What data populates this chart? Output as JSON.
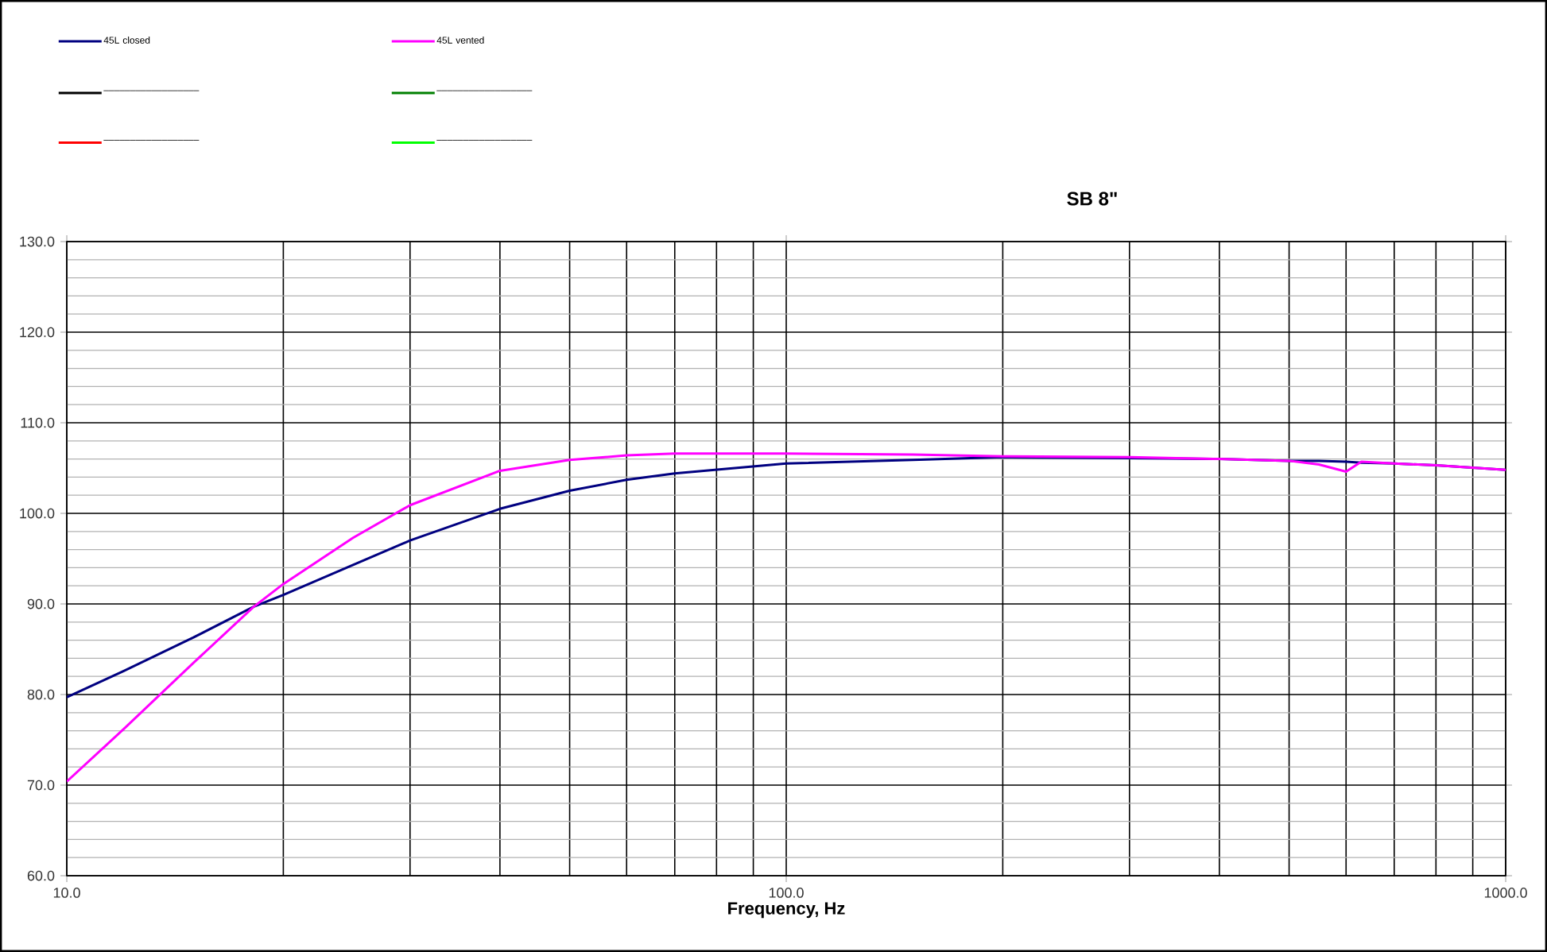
{
  "chart_data": {
    "type": "line",
    "title": "SB 8\"",
    "xlabel": "Frequency,  Hz",
    "log": "x",
    "grid": true,
    "legend": "top left",
    "line_style": "solid",
    "marker": "none",
    "xlim": [
      10,
      1000
    ],
    "ylim": [
      60,
      130
    ],
    "xticks": [
      {
        "value": 10,
        "label": "10.0"
      },
      {
        "value": 100,
        "label": "100.0"
      },
      {
        "value": 1000,
        "label": "1000.0"
      }
    ],
    "yticks": [
      {
        "value": 60,
        "label": "60.0"
      },
      {
        "value": 70,
        "label": "70.0"
      },
      {
        "value": 80,
        "label": "80.0"
      },
      {
        "value": 90,
        "label": "90.0"
      },
      {
        "value": 100,
        "label": "100.0"
      },
      {
        "value": 110,
        "label": "110.0"
      },
      {
        "value": 120,
        "label": "120.0"
      },
      {
        "value": 130,
        "label": "130.0"
      }
    ],
    "x": [
      10,
      12,
      15,
      18.2,
      20,
      25,
      30,
      40,
      50,
      60,
      70,
      100,
      150,
      200,
      300,
      400,
      500,
      550,
      600,
      630,
      700,
      800,
      1000
    ],
    "series": [
      {
        "name": "45L closed",
        "color": "#000080",
        "values": [
          79.7,
          82.6,
          86.3,
          89.7,
          91.0,
          94.3,
          97.0,
          100.5,
          102.5,
          103.7,
          104.4,
          105.5,
          105.9,
          106.2,
          106.1,
          106.0,
          105.8,
          105.8,
          105.7,
          105.6,
          105.5,
          105.3,
          104.8
        ]
      },
      {
        "name": "45L vented",
        "color": "#ff00ff",
        "values": [
          70.4,
          76.2,
          83.5,
          89.7,
          92.2,
          97.3,
          100.9,
          104.7,
          105.9,
          106.4,
          106.6,
          106.6,
          106.5,
          106.3,
          106.2,
          106.0,
          105.8,
          105.4,
          104.6,
          105.7,
          105.5,
          105.3,
          104.8
        ]
      },
      {
        "name": "––––––––––––––––––",
        "color": "#000000",
        "values": [
          null,
          null,
          null,
          null,
          null,
          null,
          null,
          null,
          null,
          null,
          null,
          null,
          null,
          null,
          null,
          null,
          null,
          null,
          null,
          null,
          null,
          null,
          null
        ]
      },
      {
        "name": "––––––––––––––––––",
        "color": "#008000",
        "values": [
          null,
          null,
          null,
          null,
          null,
          null,
          null,
          null,
          null,
          null,
          null,
          null,
          null,
          null,
          null,
          null,
          null,
          null,
          null,
          null,
          null,
          null,
          null
        ]
      },
      {
        "name": "––––––––––––––––––",
        "color": "#ff0000",
        "values": [
          null,
          null,
          null,
          null,
          null,
          null,
          null,
          null,
          null,
          null,
          null,
          null,
          null,
          null,
          null,
          null,
          null,
          null,
          null,
          null,
          null,
          null,
          null
        ]
      },
      {
        "name": "––––––––––––––––––",
        "color": "#00ff00",
        "values": [
          null,
          null,
          null,
          null,
          null,
          null,
          null,
          null,
          null,
          null,
          null,
          null,
          null,
          null,
          null,
          null,
          null,
          null,
          null,
          null,
          null,
          null,
          null
        ]
      }
    ]
  }
}
